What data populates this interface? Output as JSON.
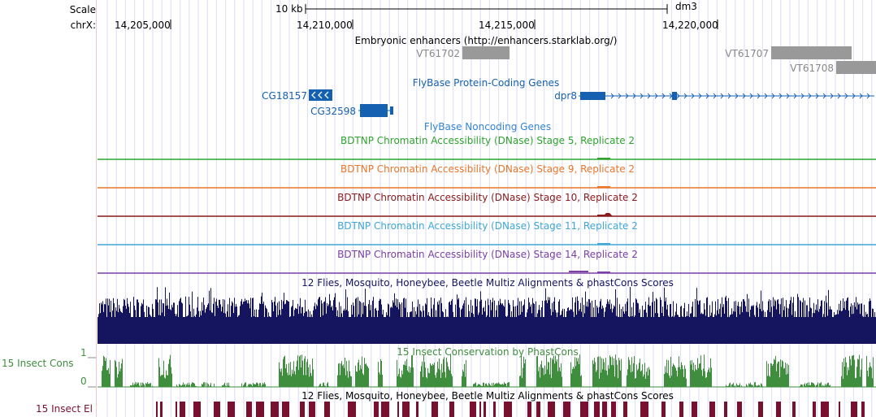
{
  "ruler": {
    "scale_label": "Scale",
    "chrom_label": "chrX:",
    "scale_bar_label": "10 kb",
    "assembly": "dm3",
    "positions": [
      "14,205,000",
      "14,210,000",
      "14,215,000",
      "14,220,000"
    ]
  },
  "tracks": {
    "enhancers": {
      "title": "Embryonic enhancers (http://enhancers.starklab.org/)",
      "items": [
        "VT61702",
        "VT61707",
        "VT61708"
      ]
    },
    "flybase_coding": {
      "title": "FlyBase Protein-Coding Genes",
      "genes": [
        "CG18157",
        "CG32598",
        "dpr8"
      ],
      "gene_color": "#1560B0"
    },
    "flybase_noncoding": {
      "title": "FlyBase Noncoding Genes"
    },
    "dnase": [
      {
        "title": "BDTNP Chromatin Accessibility (DNase) Stage 5, Replicate 2",
        "color": "#2EA32E"
      },
      {
        "title": "BDTNP Chromatin Accessibility (DNase) Stage 9, Replicate 2",
        "color": "#E8762B"
      },
      {
        "title": "BDTNP Chromatin Accessibility (DNase) Stage 10, Replicate 2",
        "color": "#8B1A1A"
      },
      {
        "title": "BDTNP Chromatin Accessibility (DNase) Stage 11, Replicate 2",
        "color": "#3FA7D6"
      },
      {
        "title": "BDTNP Chromatin Accessibility (DNase) Stage 14, Replicate 2",
        "color": "#7B3FA6"
      }
    ],
    "multiz": {
      "title": "12 Flies, Mosquito, Honeybee, Beetle Multiz Alignments & phastCons Scores",
      "color": "#14145F"
    },
    "phastcons": {
      "side_label": "15 Insect Cons",
      "title": "15 Insect Conservation by PhastCons",
      "scale_max": "1",
      "scale_min": "0",
      "color": "#3E8E3E"
    },
    "elements": {
      "side_label": "15 Insect El",
      "title": "12 Flies, Mosquito, Honeybee, Beetle Multiz Alignments & phastCons Scores",
      "color": "#7A1030"
    }
  }
}
